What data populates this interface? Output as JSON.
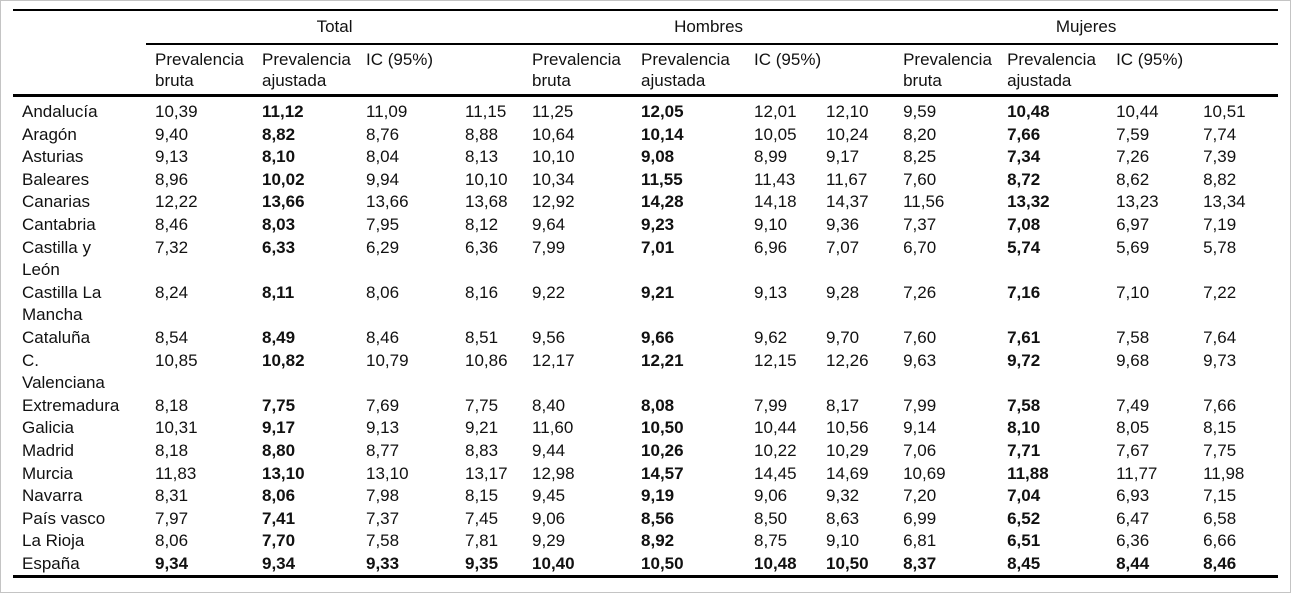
{
  "page": {
    "background": "#ffffff",
    "outer_border_color": "#c4c4c4",
    "rule_color": "#000000",
    "text_color": "#111111"
  },
  "table": {
    "corner_label": "",
    "groups": [
      {
        "label": "Total"
      },
      {
        "label": "Hombres"
      },
      {
        "label": "Mujeres"
      }
    ],
    "subheaders": {
      "bruta": "Prevalencia\nbruta",
      "ajustada": "Prevalencia\najustada",
      "ic": "IC (95%)"
    },
    "value_columns": [
      "bruta",
      "ajustada",
      "ic-low",
      "ic-high"
    ],
    "rows": [
      {
        "region": "Andalucía",
        "total": [
          "10,39",
          "11,12",
          "11,09",
          "11,15"
        ],
        "hombres": [
          "11,25",
          "12,05",
          "12,01",
          "12,10"
        ],
        "mujeres": [
          "9,59",
          "10,48",
          "10,44",
          "10,51"
        ]
      },
      {
        "region": "Aragón",
        "total": [
          "9,40",
          "8,82",
          "8,76",
          "8,88"
        ],
        "hombres": [
          "10,64",
          "10,14",
          "10,05",
          "10,24"
        ],
        "mujeres": [
          "8,20",
          "7,66",
          "7,59",
          "7,74"
        ]
      },
      {
        "region": "Asturias",
        "total": [
          "9,13",
          "8,10",
          "8,04",
          "8,13"
        ],
        "hombres": [
          "10,10",
          "9,08",
          "8,99",
          "9,17"
        ],
        "mujeres": [
          "8,25",
          "7,34",
          "7,26",
          "7,39"
        ]
      },
      {
        "region": "Baleares",
        "total": [
          "8,96",
          "10,02",
          "9,94",
          "10,10"
        ],
        "hombres": [
          "10,34",
          "11,55",
          "11,43",
          "11,67"
        ],
        "mujeres": [
          "7,60",
          "8,72",
          "8,62",
          "8,82"
        ]
      },
      {
        "region": "Canarias",
        "total": [
          "12,22",
          "13,66",
          "13,66",
          "13,68"
        ],
        "hombres": [
          "12,92",
          "14,28",
          "14,18",
          "14,37"
        ],
        "mujeres": [
          "11,56",
          "13,32",
          "13,23",
          "13,34"
        ]
      },
      {
        "region": "Cantabria",
        "total": [
          "8,46",
          "8,03",
          "7,95",
          "8,12"
        ],
        "hombres": [
          "9,64",
          "9,23",
          "9,10",
          "9,36"
        ],
        "mujeres": [
          "7,37",
          "7,08",
          "6,97",
          "7,19"
        ]
      },
      {
        "region": "Castilla y\nLeón",
        "total": [
          "7,32",
          "6,33",
          "6,29",
          "6,36"
        ],
        "hombres": [
          "7,99",
          "7,01",
          "6,96",
          "7,07"
        ],
        "mujeres": [
          "6,70",
          "5,74",
          "5,69",
          "5,78"
        ]
      },
      {
        "region": "Castilla La\nMancha",
        "total": [
          "8,24",
          "8,11",
          "8,06",
          "8,16"
        ],
        "hombres": [
          "9,22",
          "9,21",
          "9,13",
          "9,28"
        ],
        "mujeres": [
          "7,26",
          "7,16",
          "7,10",
          "7,22"
        ]
      },
      {
        "region": "Cataluña",
        "total": [
          "8,54",
          "8,49",
          "8,46",
          "8,51"
        ],
        "hombres": [
          "9,56",
          "9,66",
          "9,62",
          "9,70"
        ],
        "mujeres": [
          "7,60",
          "7,61",
          "7,58",
          "7,64"
        ]
      },
      {
        "region": "C.\nValenciana",
        "total": [
          "10,85",
          "10,82",
          "10,79",
          "10,86"
        ],
        "hombres": [
          "12,17",
          "12,21",
          "12,15",
          "12,26"
        ],
        "mujeres": [
          "9,63",
          "9,72",
          "9,68",
          "9,73"
        ]
      },
      {
        "region": "Extremadura",
        "total": [
          "8,18",
          "7,75",
          "7,69",
          "7,75"
        ],
        "hombres": [
          "8,40",
          "8,08",
          "7,99",
          "8,17"
        ],
        "mujeres": [
          "7,99",
          "7,58",
          "7,49",
          "7,66"
        ]
      },
      {
        "region": "Galicia",
        "total": [
          "10,31",
          "9,17",
          "9,13",
          "9,21"
        ],
        "hombres": [
          "11,60",
          "10,50",
          "10,44",
          "10,56"
        ],
        "mujeres": [
          "9,14",
          "8,10",
          "8,05",
          "8,15"
        ]
      },
      {
        "region": "Madrid",
        "total": [
          "8,18",
          "8,80",
          "8,77",
          "8,83"
        ],
        "hombres": [
          "9,44",
          "10,26",
          "10,22",
          "10,29"
        ],
        "mujeres": [
          "7,06",
          "7,71",
          "7,67",
          "7,75"
        ]
      },
      {
        "region": "Murcia",
        "total": [
          "11,83",
          "13,10",
          "13,10",
          "13,17"
        ],
        "hombres": [
          "12,98",
          "14,57",
          "14,45",
          "14,69"
        ],
        "mujeres": [
          "10,69",
          "11,88",
          "11,77",
          "11,98"
        ]
      },
      {
        "region": "Navarra",
        "total": [
          "8,31",
          "8,06",
          "7,98",
          "8,15"
        ],
        "hombres": [
          "9,45",
          "9,19",
          "9,06",
          "9,32"
        ],
        "mujeres": [
          "7,20",
          "7,04",
          "6,93",
          "7,15"
        ]
      },
      {
        "region": "País vasco",
        "total": [
          "7,97",
          "7,41",
          "7,37",
          "7,45"
        ],
        "hombres": [
          "9,06",
          "8,56",
          "8,50",
          "8,63"
        ],
        "mujeres": [
          "6,99",
          "6,52",
          "6,47",
          "6,58"
        ]
      },
      {
        "region": "La Rioja",
        "total": [
          "8,06",
          "7,70",
          "7,58",
          "7,81"
        ],
        "hombres": [
          "9,29",
          "8,92",
          "8,75",
          "9,10"
        ],
        "mujeres": [
          "6,81",
          "6,51",
          "6,36",
          "6,66"
        ]
      },
      {
        "region": "España",
        "bold": true,
        "total": [
          "9,34",
          "9,34",
          "9,33",
          "9,35"
        ],
        "hombres": [
          "10,40",
          "10,50",
          "10,48",
          "10,50"
        ],
        "mujeres": [
          "8,37",
          "8,45",
          "8,44",
          "8,46"
        ]
      }
    ]
  }
}
